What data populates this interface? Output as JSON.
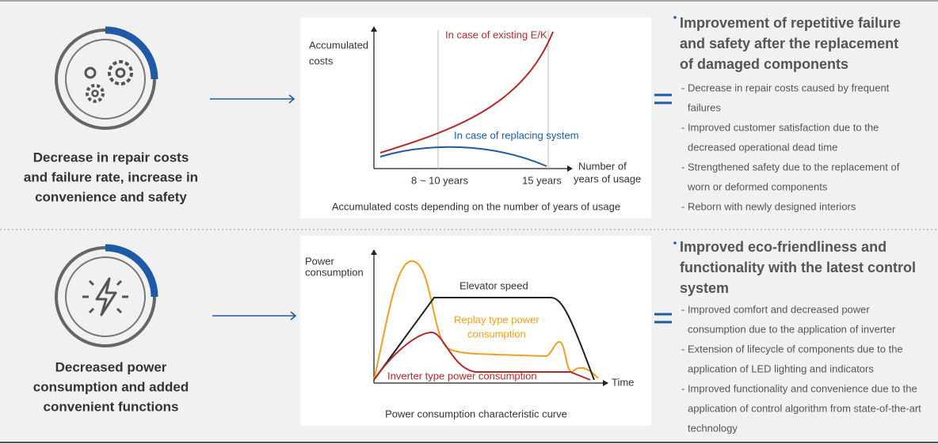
{
  "rows": [
    {
      "caption": [
        "Decrease in repair costs",
        "and failure rate, increase in",
        "convenience and safety"
      ],
      "chart": {
        "y_label": [
          "Accumulated",
          "costs"
        ],
        "x_label": [
          "Number of",
          "years of usage"
        ],
        "curve_labels": [
          "In case of existing E/K",
          "In case of replacing system"
        ],
        "x_marks": [
          "8 ~ 10 years",
          "15 years"
        ],
        "caption": "Accumulated costs depending on the number of years of usage"
      },
      "heading": [
        "Improvement of repetitive failure",
        "and safety after the replacement",
        "of damaged components"
      ],
      "bullets": [
        [
          "- Decrease in repair costs caused by frequent",
          "failures"
        ],
        [
          "- Improved customer satisfaction due to the",
          "decreased operational dead time"
        ],
        [
          "- Strengthened safety due to the replacement of",
          "worn or deformed components"
        ],
        [
          "- Reborn with newly designed interiors"
        ]
      ]
    },
    {
      "caption": [
        "Decreased power",
        "consumption and added",
        "convenient functions"
      ],
      "chart": {
        "y_label": [
          "Power",
          "consumption"
        ],
        "x_label": [
          "Time"
        ],
        "curve_labels": [
          "Elevator speed",
          "Replay type power",
          "consumption",
          "Inverter type power consumption"
        ],
        "caption": "Power consumption characteristic curve"
      },
      "heading": [
        "Improved eco-friendliness and",
        "functionality with the latest control",
        "system"
      ],
      "bullets": [
        [
          "- Improved comfort and decreased power",
          "consumption due to the application of inverter"
        ],
        [
          "- Extension of lifecycle of components due to the",
          "application of LED lighting and indicators"
        ],
        [
          "- Improved functionality and convenience due to the",
          "application of control algorithm from state-of-the-art",
          "technology"
        ]
      ]
    }
  ]
}
